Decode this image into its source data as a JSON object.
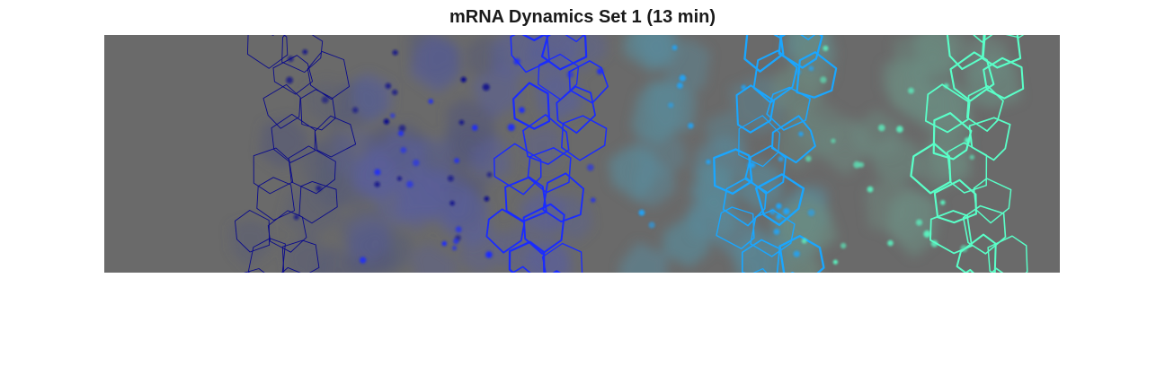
{
  "figure": {
    "title": "mRNA Dynamics Set 1 (13 min)"
  },
  "image": {
    "background_color": "#6a6a6a",
    "cell_layers": [
      {
        "name": "layer-1-dark-navy",
        "color": "#0a0a8c",
        "fill_tint": "#565a78"
      },
      {
        "name": "layer-2-blue",
        "color": "#1a2bff",
        "fill_tint": "#5a5f9a"
      },
      {
        "name": "layer-3-sky-blue",
        "color": "#1aa6ff",
        "fill_tint": "#5a8a9a"
      },
      {
        "name": "layer-4-aquamarine",
        "color": "#5affc8",
        "fill_tint": "#6c8a80"
      }
    ]
  }
}
